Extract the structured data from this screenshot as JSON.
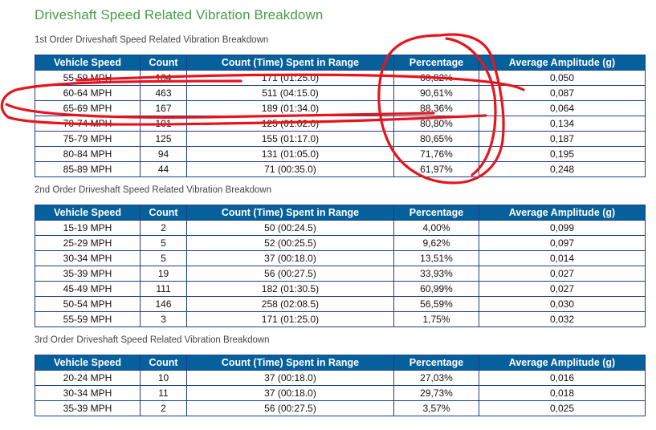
{
  "page_title": "Driveshaft Speed Related Vibration Breakdown",
  "headers": [
    "Vehicle Speed",
    "Count",
    "Count (Time) Spent in Range",
    "Percentage",
    "Average Amplitude (g)"
  ],
  "sections": [
    {
      "title": "1st Order Driveshaft Speed Related Vibration Breakdown",
      "rows": [
        [
          "55-59 MPH",
          "104",
          "171 (01:25.0)",
          "60,82%",
          "0,050"
        ],
        [
          "60-64 MPH",
          "463",
          "511 (04:15.0)",
          "90,61%",
          "0,087"
        ],
        [
          "65-69 MPH",
          "167",
          "189 (01:34.0)",
          "88,36%",
          "0,064"
        ],
        [
          "70-74 MPH",
          "101",
          "125 (01:02.0)",
          "80,80%",
          "0,134"
        ],
        [
          "75-79 MPH",
          "125",
          "155 (01:17.0)",
          "80,65%",
          "0,187"
        ],
        [
          "80-84 MPH",
          "94",
          "131 (01:05.0)",
          "71,76%",
          "0,195"
        ],
        [
          "85-89 MPH",
          "44",
          "71 (00:35.0)",
          "61,97%",
          "0,248"
        ]
      ]
    },
    {
      "title": "2nd Order Driveshaft Speed Related Vibration Breakdown",
      "rows": [
        [
          "15-19 MPH",
          "2",
          "50 (00:24.5)",
          "4,00%",
          "0,099"
        ],
        [
          "25-29 MPH",
          "5",
          "52 (00:25.5)",
          "9,62%",
          "0,097"
        ],
        [
          "30-34 MPH",
          "5",
          "37 (00:18.0)",
          "13,51%",
          "0,014"
        ],
        [
          "35-39 MPH",
          "19",
          "56 (00:27.5)",
          "33,93%",
          "0,027"
        ],
        [
          "45-49 MPH",
          "111",
          "182 (01:30.5)",
          "60,99%",
          "0,027"
        ],
        [
          "50-54 MPH",
          "146",
          "258 (02:08.5)",
          "56,59%",
          "0,030"
        ],
        [
          "55-59 MPH",
          "3",
          "171 (01:25.0)",
          "1,75%",
          "0,032"
        ]
      ]
    },
    {
      "title": "3rd Order Driveshaft Speed Related Vibration Breakdown",
      "rows": [
        [
          "20-24 MPH",
          "10",
          "37 (00:18.0)",
          "27,03%",
          "0,016"
        ],
        [
          "30-34 MPH",
          "11",
          "37 (00:18.0)",
          "29,73%",
          "0,018"
        ],
        [
          "35-39 MPH",
          "2",
          "56 (00:27.5)",
          "3,57%",
          "0,025"
        ]
      ]
    }
  ],
  "colors": {
    "title_green": "#4a9a4a",
    "header_blue": "#06609b",
    "border_navy": "#1c3d8a",
    "annotation_red": "#e8141c"
  }
}
